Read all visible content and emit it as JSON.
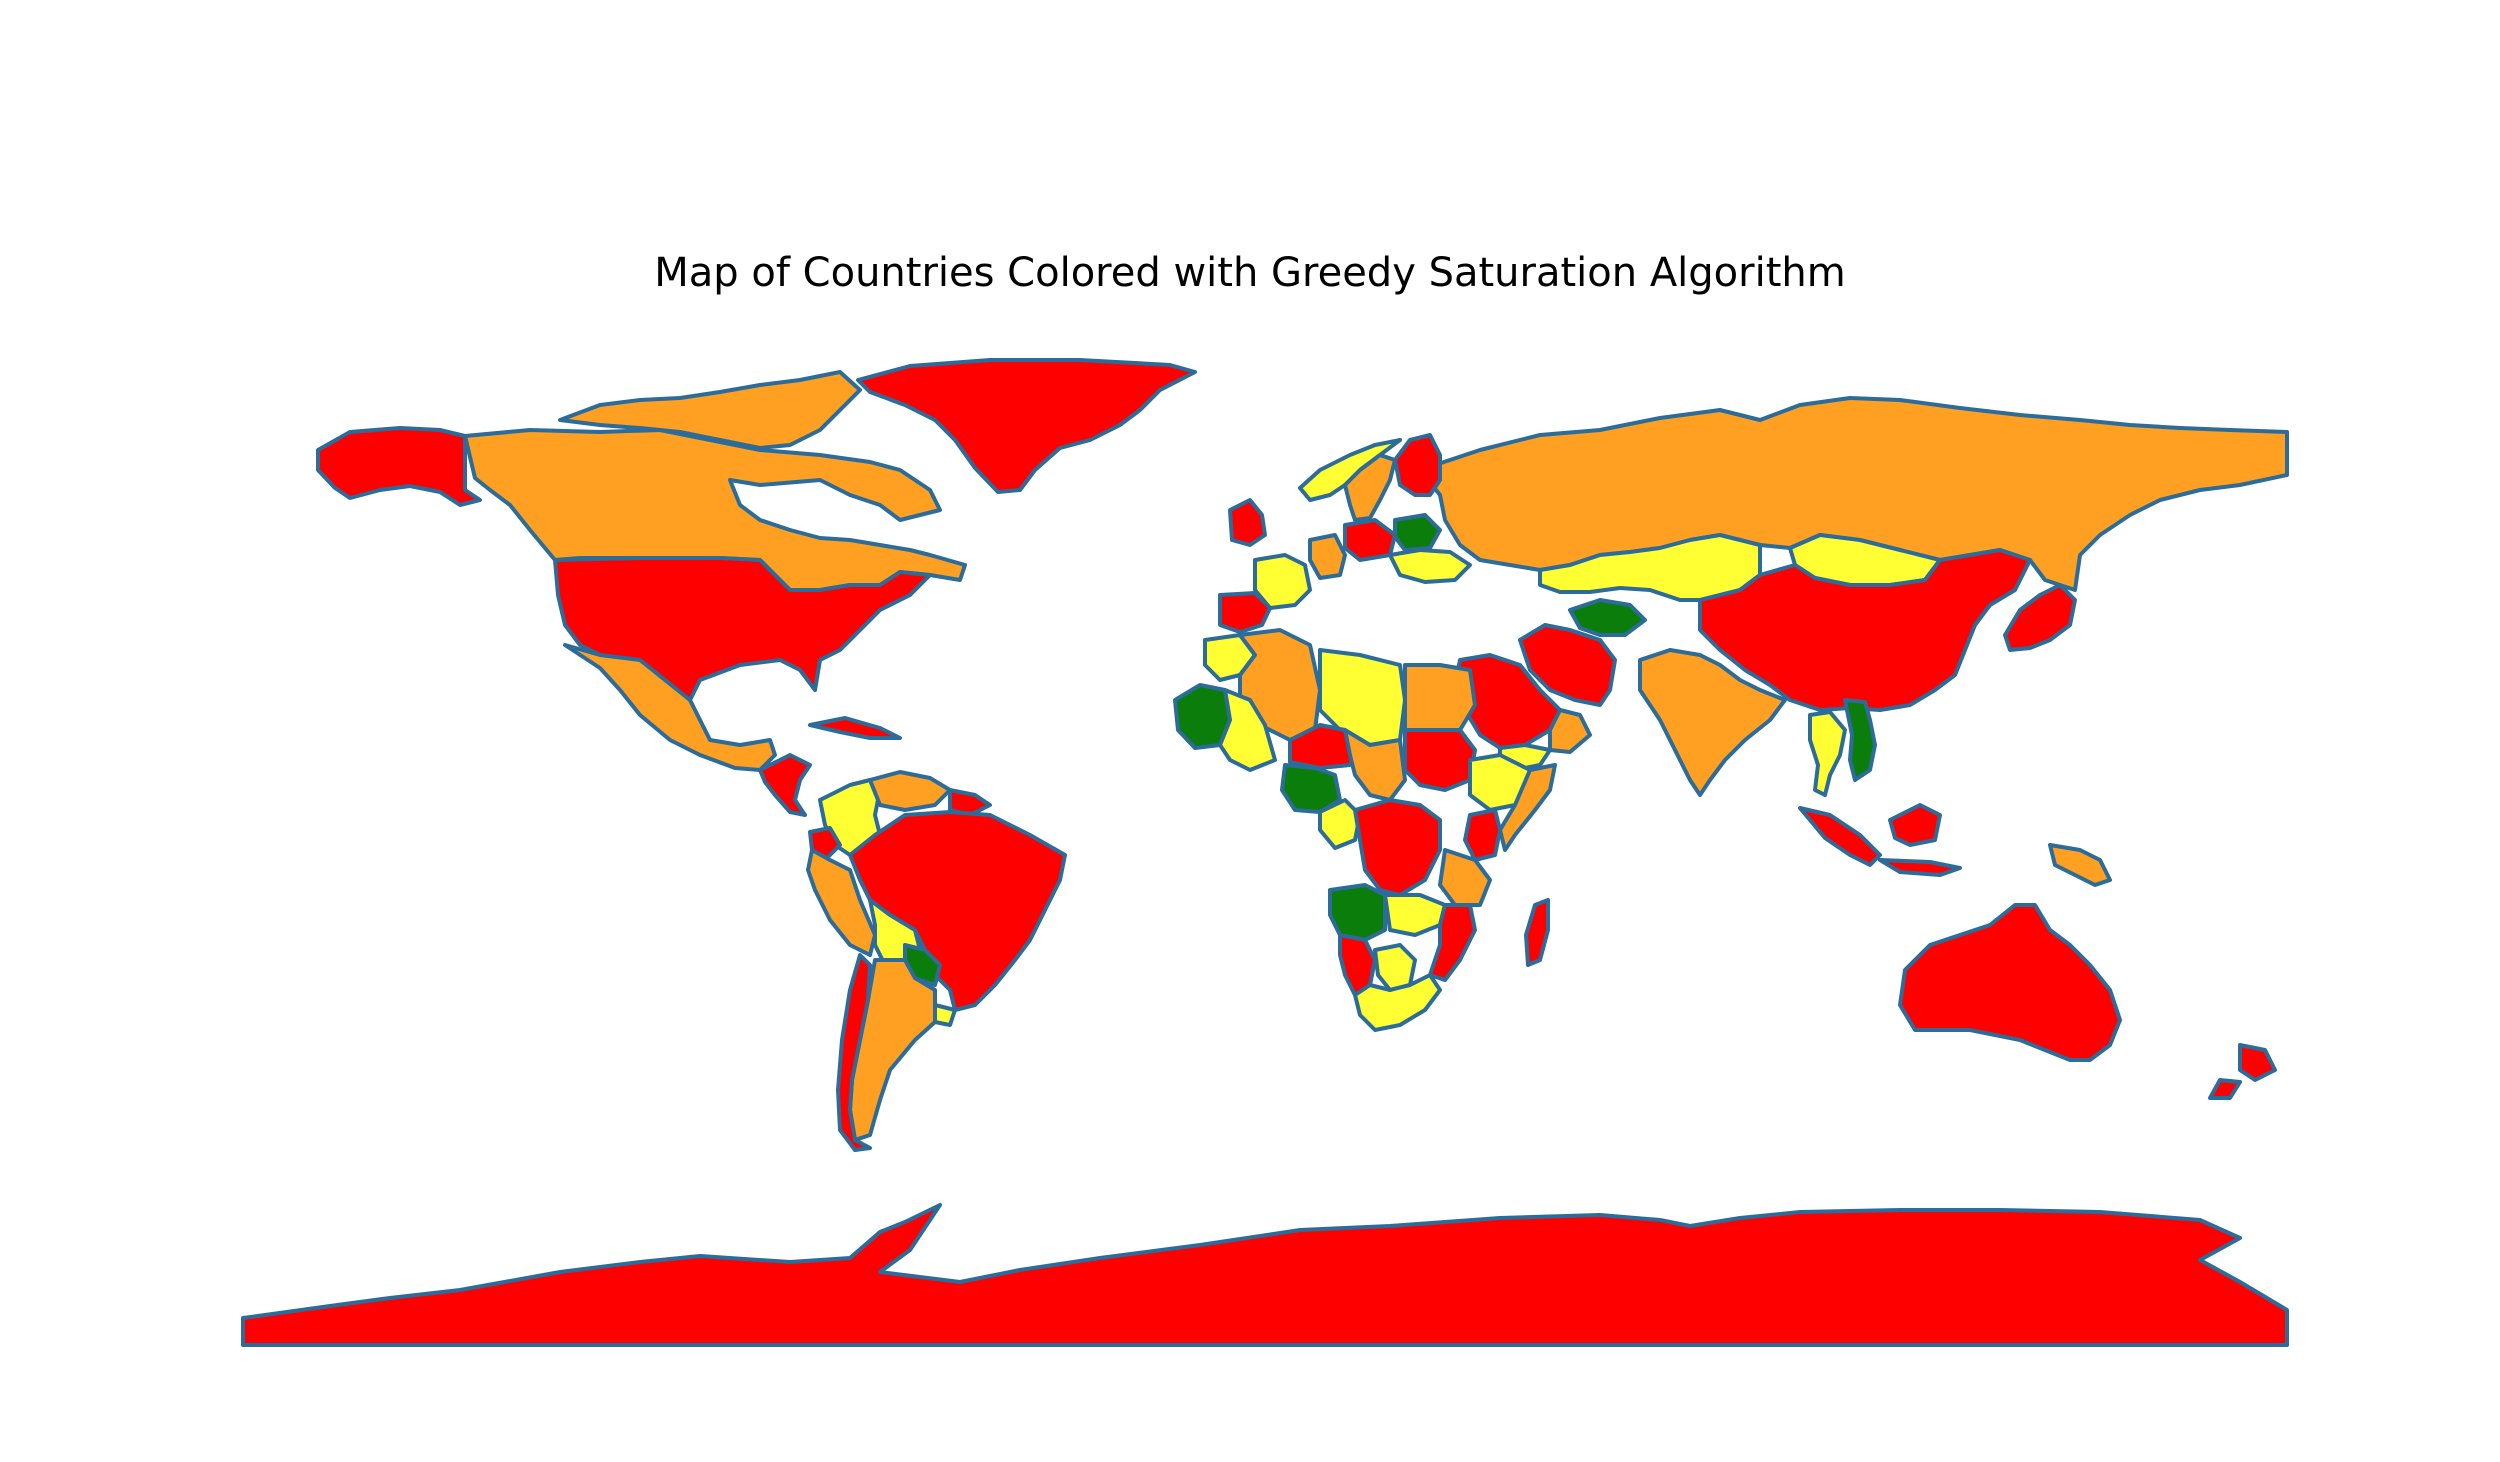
{
  "title": "Map of Countries Colored with Greedy Saturation Algorithm",
  "palette": {
    "red": "#ff0000",
    "orange": "#ffa022",
    "yellow": "#ffff33",
    "green": "#0a7d0a",
    "outline": "#2b6c9a"
  },
  "regions": [
    {
      "name": "Antarctica",
      "color": "red"
    },
    {
      "name": "Greenland",
      "color": "red"
    },
    {
      "name": "Alaska (USA)",
      "color": "red"
    },
    {
      "name": "Canada",
      "color": "orange"
    },
    {
      "name": "Canadian Arctic Islands",
      "color": "orange"
    },
    {
      "name": "United States",
      "color": "red"
    },
    {
      "name": "Mexico",
      "color": "orange"
    },
    {
      "name": "Central America",
      "color": "red"
    },
    {
      "name": "Cuba",
      "color": "red"
    },
    {
      "name": "Colombia",
      "color": "yellow"
    },
    {
      "name": "Venezuela",
      "color": "orange"
    },
    {
      "name": "Guyana region",
      "color": "red"
    },
    {
      "name": "Ecuador",
      "color": "red"
    },
    {
      "name": "Peru",
      "color": "orange"
    },
    {
      "name": "Brazil",
      "color": "red"
    },
    {
      "name": "Bolivia",
      "color": "yellow"
    },
    {
      "name": "Paraguay",
      "color": "green"
    },
    {
      "name": "Uruguay",
      "color": "yellow"
    },
    {
      "name": "Argentina",
      "color": "orange"
    },
    {
      "name": "Chile",
      "color": "red"
    },
    {
      "name": "Russia",
      "color": "orange"
    },
    {
      "name": "Kazakhstan",
      "color": "yellow"
    },
    {
      "name": "Mongolia",
      "color": "yellow"
    },
    {
      "name": "China",
      "color": "red"
    },
    {
      "name": "India",
      "color": "orange"
    },
    {
      "name": "Iran",
      "color": "red"
    },
    {
      "name": "Turkmenistan",
      "color": "green"
    },
    {
      "name": "Saudi Arabia",
      "color": "red"
    },
    {
      "name": "Oman",
      "color": "orange"
    },
    {
      "name": "Yemen",
      "color": "yellow"
    },
    {
      "name": "Thailand",
      "color": "yellow"
    },
    {
      "name": "Vietnam",
      "color": "green"
    },
    {
      "name": "Japan",
      "color": "red"
    },
    {
      "name": "Indonesia",
      "color": "red"
    },
    {
      "name": "Papua New Guinea",
      "color": "orange"
    },
    {
      "name": "Australia",
      "color": "red"
    },
    {
      "name": "New Zealand",
      "color": "red"
    },
    {
      "name": "Norway",
      "color": "yellow"
    },
    {
      "name": "Sweden",
      "color": "orange"
    },
    {
      "name": "Finland",
      "color": "red"
    },
    {
      "name": "United Kingdom",
      "color": "red"
    },
    {
      "name": "France",
      "color": "yellow"
    },
    {
      "name": "Spain",
      "color": "red"
    },
    {
      "name": "Germany",
      "color": "orange"
    },
    {
      "name": "Poland",
      "color": "red"
    },
    {
      "name": "Belarus",
      "color": "green"
    },
    {
      "name": "Ukraine",
      "color": "yellow"
    },
    {
      "name": "Morocco",
      "color": "yellow"
    },
    {
      "name": "Algeria",
      "color": "orange"
    },
    {
      "name": "Libya",
      "color": "yellow"
    },
    {
      "name": "Egypt",
      "color": "orange"
    },
    {
      "name": "Mauritania",
      "color": "green"
    },
    {
      "name": "Mali",
      "color": "yellow"
    },
    {
      "name": "Niger",
      "color": "red"
    },
    {
      "name": "Chad",
      "color": "orange"
    },
    {
      "name": "Sudan",
      "color": "red"
    },
    {
      "name": "Ethiopia",
      "color": "yellow"
    },
    {
      "name": "Nigeria",
      "color": "green"
    },
    {
      "name": "Cameroon",
      "color": "yellow"
    },
    {
      "name": "DR Congo",
      "color": "red"
    },
    {
      "name": "Kenya",
      "color": "red"
    },
    {
      "name": "Tanzania",
      "color": "orange"
    },
    {
      "name": "Angola",
      "color": "green"
    },
    {
      "name": "Zambia",
      "color": "yellow"
    },
    {
      "name": "Namibia",
      "color": "red"
    },
    {
      "name": "Botswana",
      "color": "yellow"
    },
    {
      "name": "Mozambique",
      "color": "red"
    },
    {
      "name": "South Africa",
      "color": "yellow"
    },
    {
      "name": "Madagascar",
      "color": "red"
    },
    {
      "name": "Somalia",
      "color": "orange"
    }
  ]
}
